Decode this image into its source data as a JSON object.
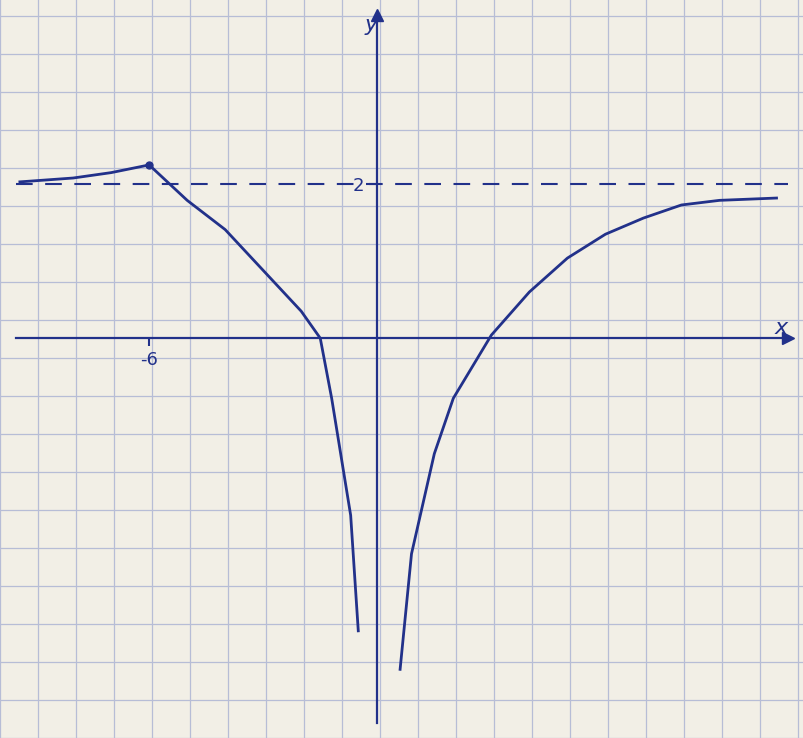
{
  "chart_data": {
    "type": "line",
    "x_label": "x",
    "y_label": "y",
    "x": [
      -9.4,
      -8,
      -7,
      -6,
      -5,
      -4,
      -3,
      -2,
      -1.5,
      -1.2,
      -0.7,
      -0.5,
      0,
      0.6,
      0.9,
      1.5,
      2,
      3,
      4,
      5,
      6,
      7,
      8,
      9,
      10,
      10.5
    ],
    "values": [
      2.03,
      2.08,
      2.15,
      2.25,
      1.79,
      1.41,
      0.88,
      0.35,
      0.0,
      -0.78,
      -2.3,
      -3.8,
      null,
      -4.3,
      -2.8,
      -1.5,
      -0.78,
      0.04,
      0.6,
      1.04,
      1.35,
      1.56,
      1.73,
      1.79,
      1.81,
      1.82
    ],
    "color": "#22318a",
    "asymptote_y": 2,
    "xlim": [
      -9.5,
      10.8
    ],
    "ylim": [
      -5,
      4.2
    ],
    "xticks": [
      -6
    ],
    "yticks": [
      2
    ]
  }
}
